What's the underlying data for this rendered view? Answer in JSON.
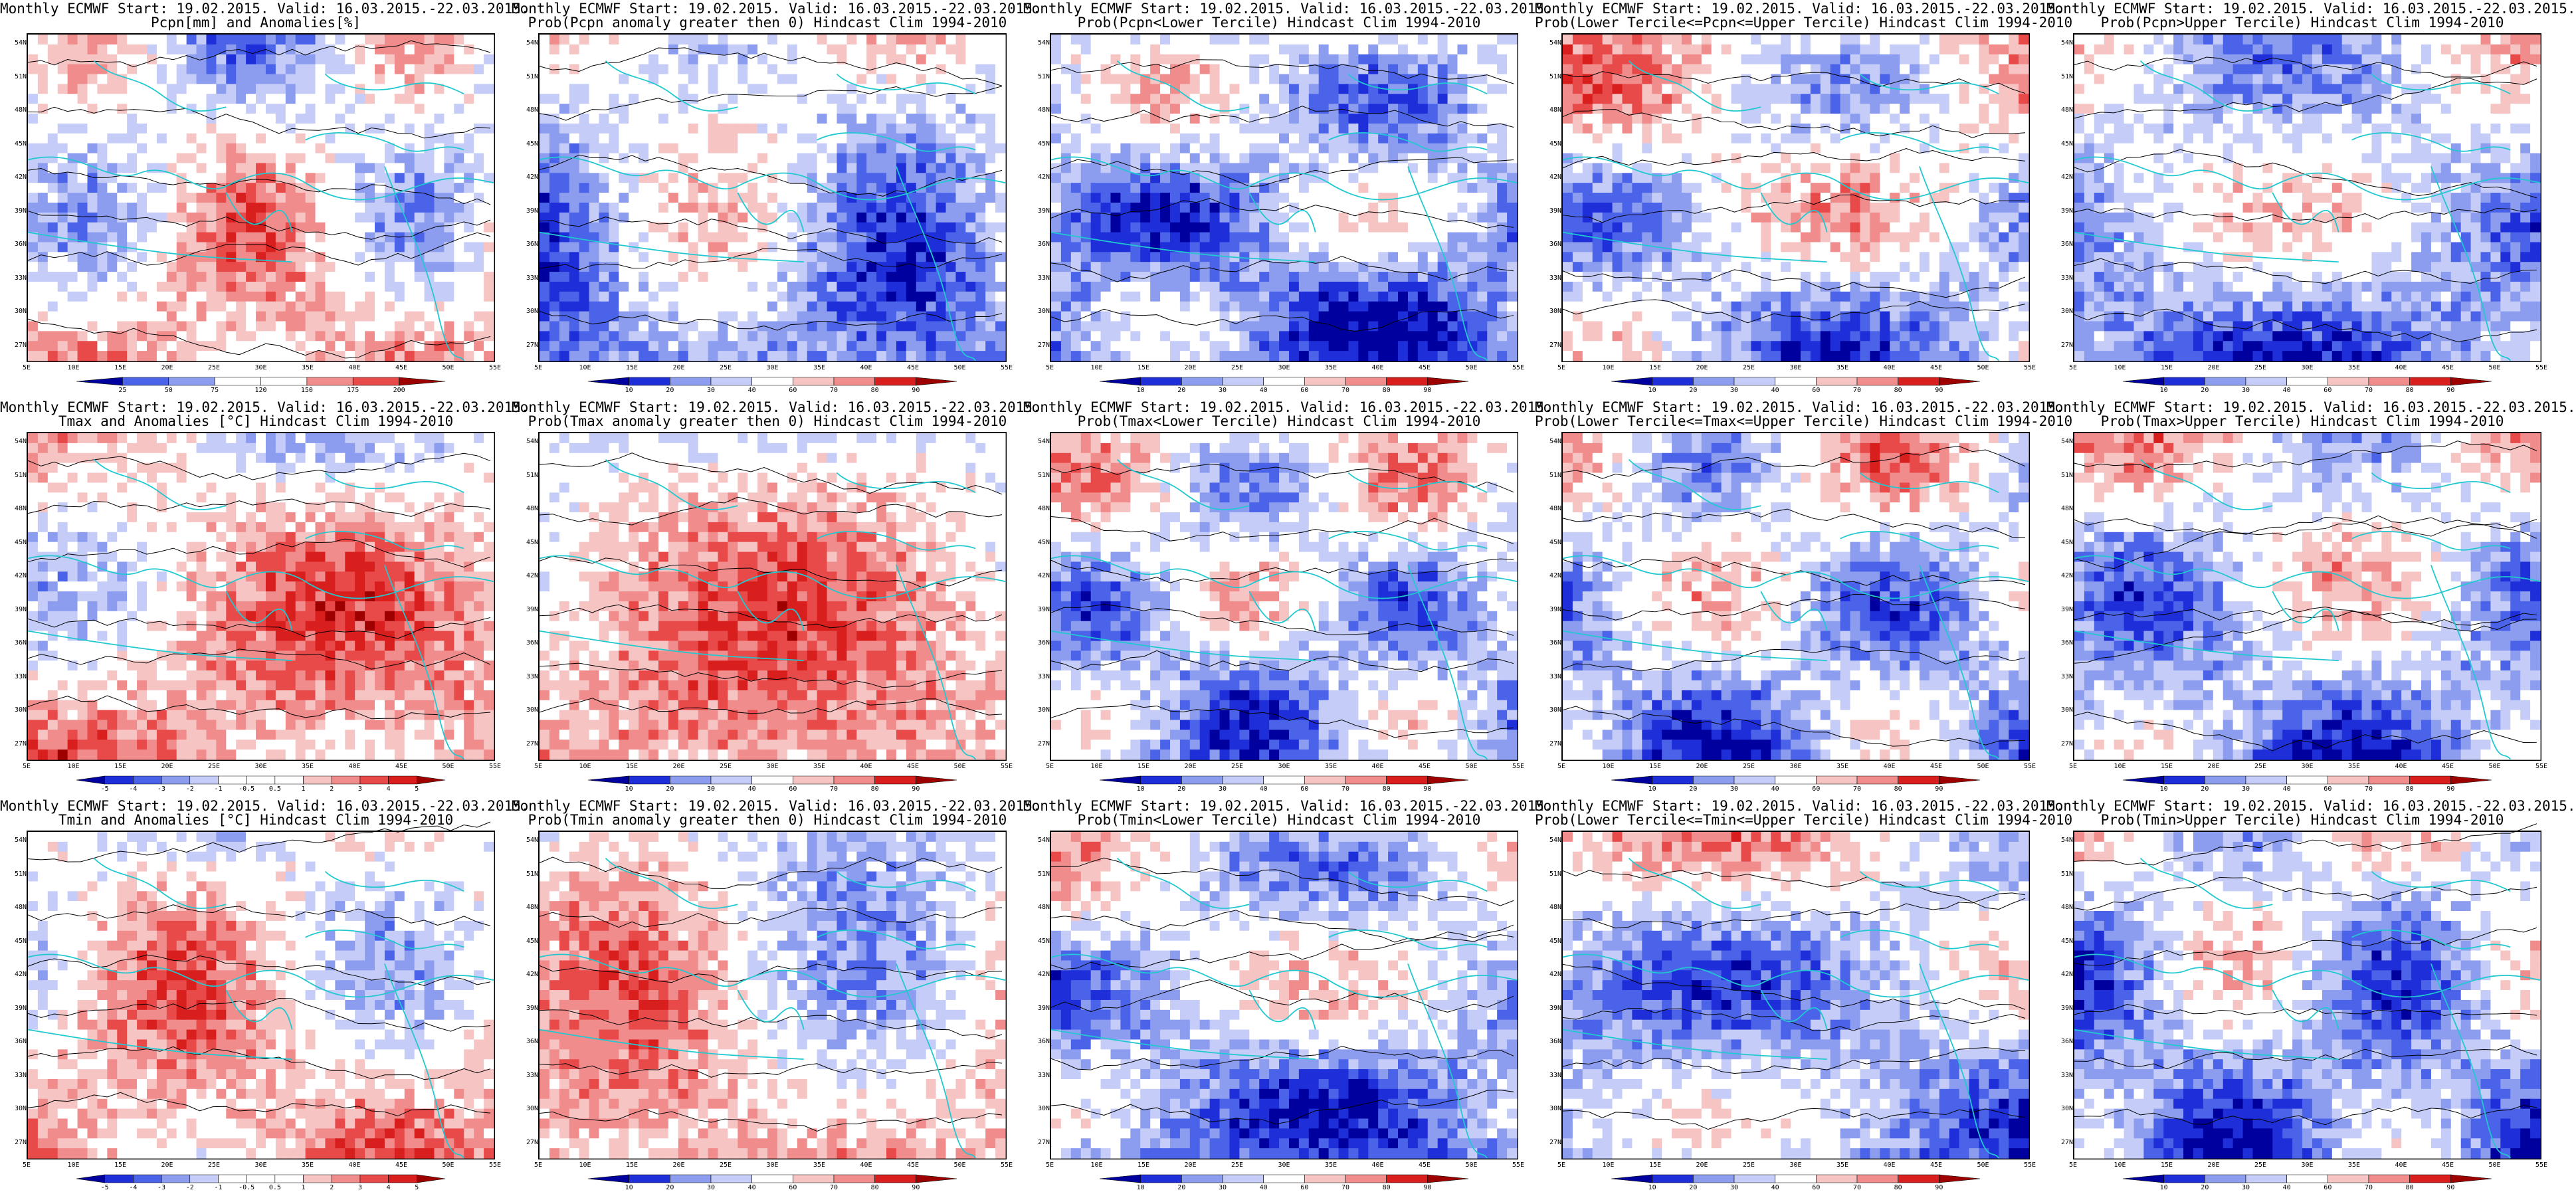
{
  "figure": {
    "lat_ticks": [
      "54N",
      "51N",
      "48N",
      "45N",
      "42N",
      "39N",
      "36N",
      "33N",
      "30N",
      "27N"
    ],
    "lon_ticks": [
      "5E",
      "10E",
      "15E",
      "20E",
      "25E",
      "30E",
      "35E",
      "40E",
      "45E",
      "50E",
      "55E"
    ],
    "colormap_blue_white_red": [
      "#00009e",
      "#1e2fd9",
      "#4a63e8",
      "#8c9df0",
      "#c4ccf7",
      "#ffffff",
      "#ffffff",
      "#f7c4c4",
      "#f08c8c",
      "#e84a4a",
      "#d91e1e",
      "#9e0000"
    ],
    "coastline_color": "#20c8d0",
    "contour_color": "#000000"
  },
  "panels": [
    {
      "title1": "Monthly ECMWF Start: 19.02.2015. Valid: 16.03.2015.-22.03.2015.",
      "title2": "Pcpn[mm] and Anomalies[%]",
      "colorbar_labels": [
        "25",
        "50",
        "75",
        "120",
        "150",
        "175",
        "200"
      ],
      "field_bias": 0.05,
      "seed": 11
    },
    {
      "title1": "Monthly ECMWF Start: 19.02.2015. Valid: 16.03.2015.-22.03.2015.",
      "title2": "Prob(Pcpn anomaly greater then 0) Hindcast Clim 1994-2010",
      "colorbar_labels": [
        "10",
        "20",
        "30",
        "40",
        "60",
        "70",
        "80",
        "90"
      ],
      "field_bias": -0.25,
      "seed": 12
    },
    {
      "title1": "Monthly ECMWF Start: 19.02.2015. Valid: 16.03.2015.-22.03.2015.",
      "title2": "Prob(Pcpn<Lower Tercile) Hindcast Clim 1994-2010",
      "colorbar_labels": [
        "10",
        "20",
        "30",
        "40",
        "60",
        "70",
        "80",
        "90"
      ],
      "field_bias": -0.35,
      "seed": 13
    },
    {
      "title1": "Monthly ECMWF Start: 19.02.2015. Valid: 16.03.2015.-22.03.2015.",
      "title2": "Prob(Lower Tercile<=Pcpn<=Upper Tercile) Hindcast Clim 1994-2010",
      "colorbar_labels": [
        "10",
        "20",
        "30",
        "40",
        "60",
        "70",
        "80",
        "90"
      ],
      "field_bias": -0.1,
      "seed": 14
    },
    {
      "title1": "Monthly ECMWF Start: 19.02.2015. Valid: 16.03.2015.-22.03.2015.",
      "title2": "Prob(Pcpn>Upper Tercile) Hindcast Clim 1994-2010",
      "colorbar_labels": [
        "10",
        "20",
        "30",
        "40",
        "60",
        "70",
        "80",
        "90"
      ],
      "field_bias": -0.25,
      "seed": 15
    },
    {
      "title1": "Monthly ECMWF Start: 19.02.2015. Valid: 16.03.2015.-22.03.2015.",
      "title2": "Tmax and Anomalies [°C] Hindcast Clim 1994-2010",
      "colorbar_labels": [
        "-5",
        "-4",
        "-3",
        "-2",
        "-1",
        "-0.5",
        "0.5",
        "1",
        "2",
        "3",
        "4",
        "5"
      ],
      "field_bias": 0.2,
      "seed": 21
    },
    {
      "title1": "Monthly ECMWF Start: 19.02.2015. Valid: 16.03.2015.-22.03.2015.",
      "title2": "Prob(Tmax anomaly greater then 0) Hindcast Clim 1994-2010",
      "colorbar_labels": [
        "10",
        "20",
        "30",
        "40",
        "60",
        "70",
        "80",
        "90"
      ],
      "field_bias": 0.15,
      "seed": 22
    },
    {
      "title1": "Monthly ECMWF Start: 19.02.2015. Valid: 16.03.2015.-22.03.2015.",
      "title2": "Prob(Tmax<Lower Tercile) Hindcast Clim 1994-2010",
      "colorbar_labels": [
        "10",
        "20",
        "30",
        "40",
        "60",
        "70",
        "80",
        "90"
      ],
      "field_bias": -0.2,
      "seed": 23
    },
    {
      "title1": "Monthly ECMWF Start: 19.02.2015. Valid: 16.03.2015.-22.03.2015.",
      "title2": "Prob(Lower Tercile<=Tmax<=Upper Tercile) Hindcast Clim 1994-2010",
      "colorbar_labels": [
        "10",
        "20",
        "30",
        "40",
        "60",
        "70",
        "80",
        "90"
      ],
      "field_bias": -0.2,
      "seed": 24
    },
    {
      "title1": "Monthly ECMWF Start: 19.02.2015. Valid: 16.03.2015.-22.03.2015.",
      "title2": "Prob(Tmax>Upper Tercile) Hindcast Clim 1994-2010",
      "colorbar_labels": [
        "10",
        "20",
        "30",
        "40",
        "60",
        "70",
        "80",
        "90"
      ],
      "field_bias": -0.2,
      "seed": 25
    },
    {
      "title1": "Monthly ECMWF Start: 19.02.2015. Valid: 16.03.2015.-22.03.2015.",
      "title2": "Tmin and Anomalies [°C] Hindcast Clim 1994-2010",
      "colorbar_labels": [
        "-5",
        "-4",
        "-3",
        "-2",
        "-1",
        "-0.5",
        "0.5",
        "1",
        "2",
        "3",
        "4",
        "5"
      ],
      "field_bias": 0.15,
      "seed": 31
    },
    {
      "title1": "Monthly ECMWF Start: 19.02.2015. Valid: 16.03.2015.-22.03.2015.",
      "title2": "Prob(Tmin anomaly greater then 0) Hindcast Clim 1994-2010",
      "colorbar_labels": [
        "10",
        "20",
        "30",
        "40",
        "60",
        "70",
        "80",
        "90"
      ],
      "field_bias": 0.1,
      "seed": 32
    },
    {
      "title1": "Monthly ECMWF Start: 19.02.2015. Valid: 16.03.2015.-22.03.2015.",
      "title2": "Prob(Tmin<Lower Tercile) Hindcast Clim 1994-2010",
      "colorbar_labels": [
        "10",
        "20",
        "30",
        "40",
        "60",
        "70",
        "80",
        "90"
      ],
      "field_bias": -0.25,
      "seed": 33
    },
    {
      "title1": "Monthly ECMWF Start: 19.02.2015. Valid: 16.03.2015.-22.03.2015.",
      "title2": "Prob(Lower Tercile<=Tmin<=Upper Tercile) Hindcast Clim 1994-2010",
      "colorbar_labels": [
        "10",
        "20",
        "30",
        "40",
        "60",
        "70",
        "80",
        "90"
      ],
      "field_bias": -0.25,
      "seed": 34
    },
    {
      "title1": "Monthly ECMWF Start: 19.02.2015. Valid: 16.03.2015.-22.03.2015.",
      "title2": "Prob(Tmin>Upper Tercile) Hindcast Clim 1994-2010",
      "colorbar_labels": [
        "10",
        "20",
        "30",
        "40",
        "60",
        "70",
        "80",
        "90"
      ],
      "field_bias": -0.3,
      "seed": 35
    }
  ]
}
